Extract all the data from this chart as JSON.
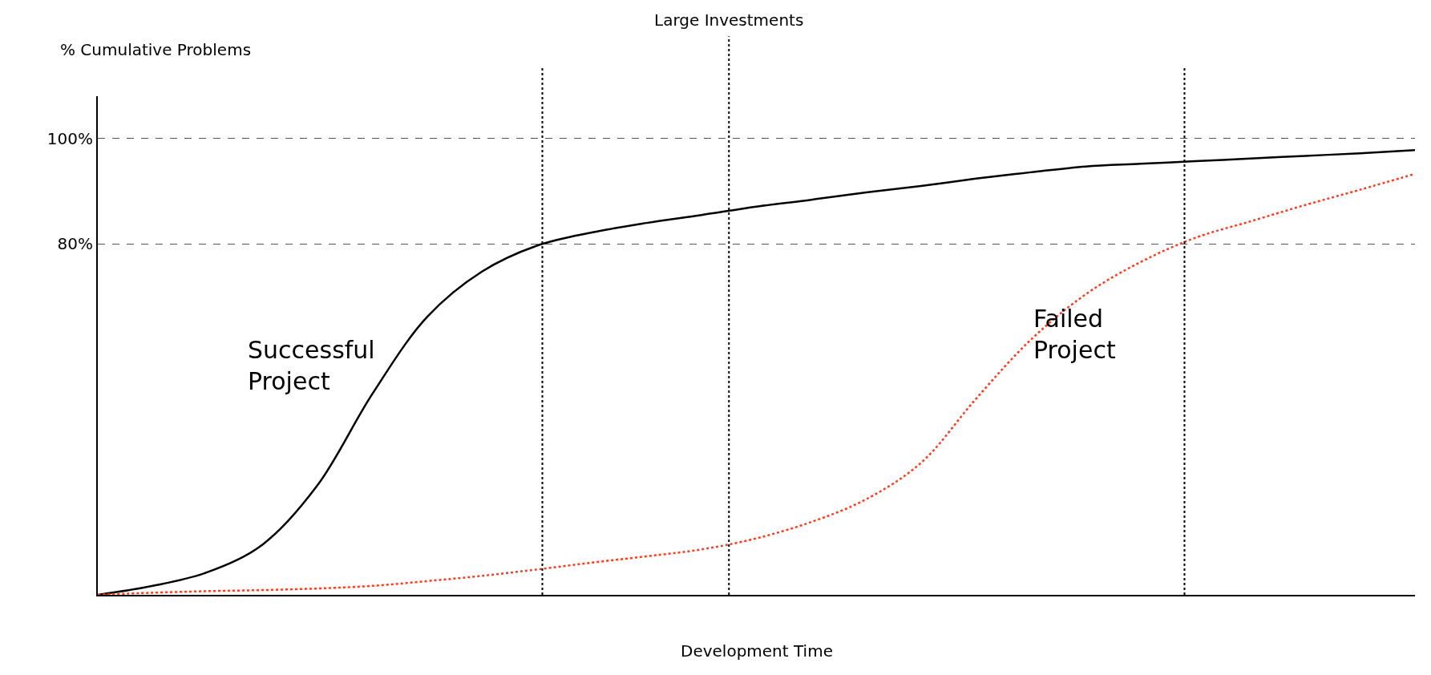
{
  "chart_data": {
    "type": "line",
    "xlabel": "Development Time",
    "ylabel": "% Cumulative Problems",
    "categories": [
      null,
      null,
      null,
      null,
      null,
      null,
      null,
      null,
      null,
      null,
      null,
      null,
      null,
      null,
      null,
      null,
      null,
      null,
      null,
      null,
      null,
      null,
      null,
      null,
      null
    ],
    "series": [
      {
        "color": "#000000",
        "line_style": "solid",
        "values": [
          13.6,
          15.3,
          17.9,
          23.1,
          34.3,
          51.6,
          66.2,
          74.8,
          79.7,
          82.2,
          84.0,
          85.5,
          87.1,
          88.4,
          89.8,
          91.0,
          92.4,
          93.6,
          94.7,
          95.2,
          95.7,
          96.2,
          96.7,
          97.2,
          97.8
        ]
      },
      {
        "color": "#ff3b1f",
        "line_style": "dotted",
        "values": [
          13.6,
          14.0,
          14.3,
          14.5,
          14.8,
          15.3,
          16.2,
          17.2,
          18.4,
          19.7,
          20.9,
          22.2,
          24.3,
          27.4,
          31.7,
          38.6,
          50.7,
          61.9,
          70.5,
          76.6,
          81.2,
          84.3,
          87.4,
          90.3,
          93.3
        ]
      }
    ],
    "ylim": [
      13.6,
      108
    ],
    "yticks": [
      {
        "value": 80,
        "label": "80%"
      },
      {
        "value": 100,
        "label": "100%"
      }
    ],
    "grid": "y",
    "marker": "none",
    "annotations": [
      "Successful\nProject",
      "Failed\nProject",
      "Large Investments"
    ]
  }
}
